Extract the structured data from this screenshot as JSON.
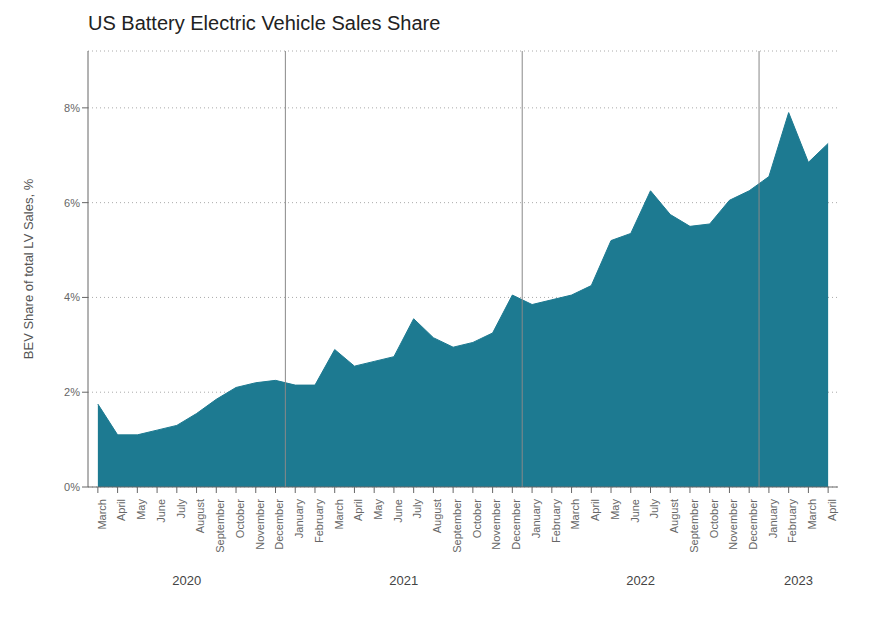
{
  "chart_data": {
    "type": "area",
    "title": "US Battery Electric Vehicle Sales Share",
    "y_label": "BEV Share of total LV Sales, %",
    "categories": [
      "March",
      "April",
      "May",
      "June",
      "July",
      "August",
      "September",
      "October",
      "November",
      "December",
      "January",
      "February",
      "March",
      "April",
      "May",
      "June",
      "July",
      "August",
      "September",
      "October",
      "November",
      "December",
      "January",
      "February",
      "March",
      "April",
      "May",
      "June",
      "July",
      "August",
      "September",
      "October",
      "November",
      "December",
      "January",
      "February",
      "March",
      "April"
    ],
    "values": [
      1.75,
      1.1,
      1.1,
      1.2,
      1.3,
      1.55,
      1.85,
      2.1,
      2.2,
      2.25,
      2.15,
      2.15,
      2.9,
      2.55,
      2.65,
      2.75,
      3.55,
      3.15,
      2.95,
      3.05,
      3.25,
      4.05,
      3.85,
      3.95,
      4.05,
      4.25,
      5.2,
      5.35,
      6.25,
      5.75,
      5.5,
      5.55,
      6.05,
      6.25,
      6.55,
      7.9,
      6.85,
      7.25
    ],
    "color": "#1d7a91",
    "ylim": [
      0,
      9.2
    ],
    "yticks": [
      {
        "value": 0,
        "label": "0%"
      },
      {
        "value": 2,
        "label": "2%"
      },
      {
        "value": 4,
        "label": "4%"
      },
      {
        "value": 6,
        "label": "6%"
      },
      {
        "value": 8,
        "label": "8%"
      }
    ],
    "grid": true,
    "annotations": [
      "2020",
      "2021",
      "2022",
      "2023"
    ]
  }
}
